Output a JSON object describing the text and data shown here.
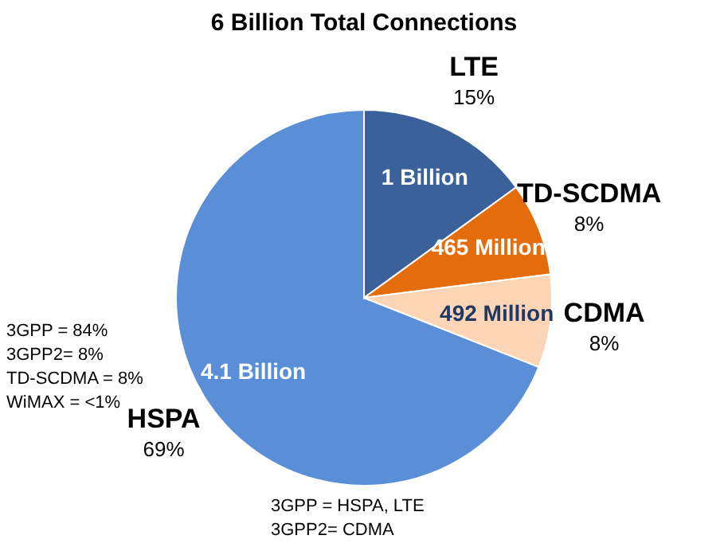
{
  "chart_data": {
    "type": "pie",
    "title": "6 Billion Total Connections",
    "categories": [
      "HSPA",
      "LTE",
      "TD-SCDMA",
      "CDMA"
    ],
    "values": [
      69,
      15,
      8,
      8
    ],
    "value_labels": [
      "69%",
      "15%",
      "8%",
      "8%"
    ],
    "colors": [
      "#5a8fd8",
      "#3b619a",
      "#e46c0a",
      "#fbd5b5"
    ],
    "annotations": [
      "4.1 Billion",
      "1 Billion",
      "465 Million",
      "492 Million",
      "3GPP = 84%",
      "3GPP2= 8%",
      "TD-SCDMA = 8%",
      "WiMAX = <1%",
      "3GPP = HSPA, LTE",
      "3GPP2= CDMA"
    ]
  }
}
